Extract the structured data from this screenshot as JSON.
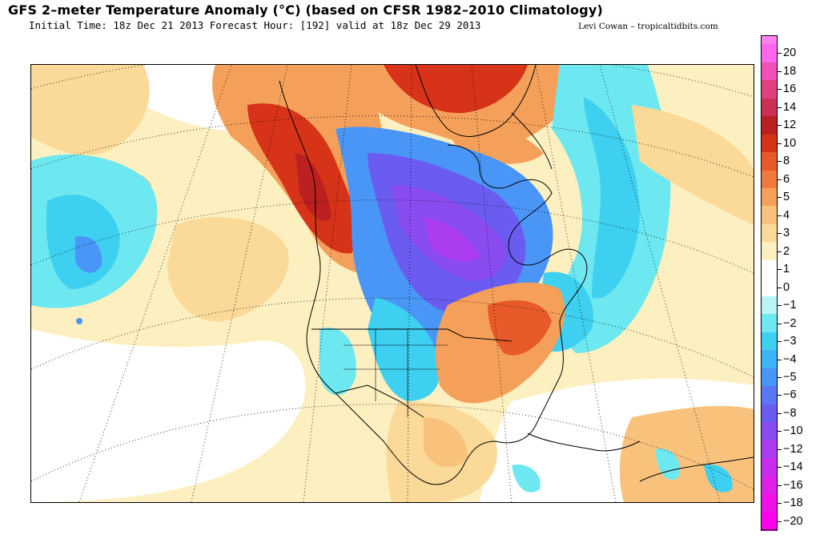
{
  "title": "GFS 2–meter Temperature Anomaly (°C) (based on CFSR 1982–2010 Climatology)",
  "subtitle": "Initial Time: 18z Dec 21 2013 Forecast Hour: [192] valid at 18z Dec 29 2013",
  "credit": "Levi Cowan – tropicaltidbits.com",
  "colorbar": {
    "levels": [
      {
        "label": "20",
        "color": "#ff66ee"
      },
      {
        "label": "18",
        "color": "#f24fb8"
      },
      {
        "label": "16",
        "color": "#e0407e"
      },
      {
        "label": "14",
        "color": "#cc3055"
      },
      {
        "label": "12",
        "color": "#bb2020"
      },
      {
        "label": "10",
        "color": "#d63318"
      },
      {
        "label": "8",
        "color": "#e85a2a"
      },
      {
        "label": "6",
        "color": "#f07a3e"
      },
      {
        "label": "5",
        "color": "#f5a05a"
      },
      {
        "label": "4",
        "color": "#f9c27c"
      },
      {
        "label": "3",
        "color": "#fbd998"
      },
      {
        "label": "2",
        "color": "#fdf0c0"
      },
      {
        "label": "1",
        "color": "#ffffff"
      },
      {
        "label": "0",
        "color": "#ffffff"
      },
      {
        "label": "−1",
        "color": "#b8f5f8"
      },
      {
        "label": "−2",
        "color": "#6ee8f0"
      },
      {
        "label": "−3",
        "color": "#3ed0f0"
      },
      {
        "label": "−4",
        "color": "#3cb4f6"
      },
      {
        "label": "−5",
        "color": "#4a96f6"
      },
      {
        "label": "−6",
        "color": "#5a78f4"
      },
      {
        "label": "−8",
        "color": "#6a5cf0"
      },
      {
        "label": "−10",
        "color": "#8a4cf0"
      },
      {
        "label": "−12",
        "color": "#ab3cf0"
      },
      {
        "label": "−14",
        "color": "#c82cec"
      },
      {
        "label": "−16",
        "color": "#de20e8"
      },
      {
        "label": "−18",
        "color": "#f012e8"
      },
      {
        "label": "−20",
        "color": "#ff00ee"
      }
    ],
    "top_color": "#ff80f0"
  },
  "colors": {
    "warm_light": "#fbd998",
    "warm_mid": "#f5a05a",
    "warm_strong": "#d63318",
    "warm_extreme": "#bb2020",
    "cool_light": "#6ee8f0",
    "cool_mid": "#3ed0f0",
    "cool_strong": "#4a96f6",
    "cold_extreme": "#8a4cf0",
    "cold_core": "#ab3cf0"
  }
}
